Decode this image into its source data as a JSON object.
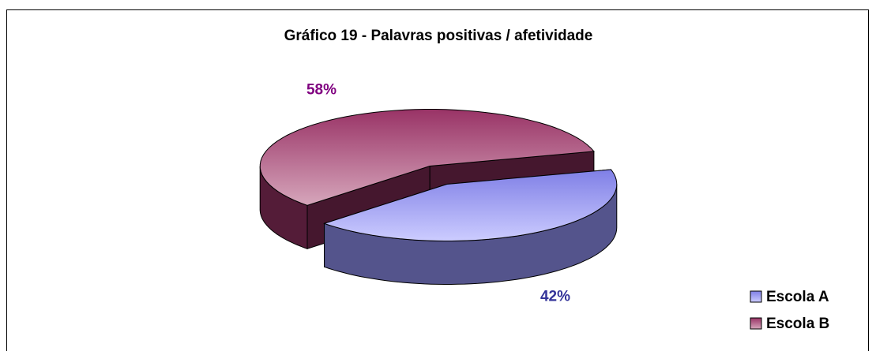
{
  "chart_data": {
    "type": "pie",
    "title": "Gráfico 19 - Palavras positivas / afetividade",
    "categories": [
      "Escola A",
      "Escola B"
    ],
    "values": [
      42,
      58
    ],
    "value_labels": [
      "42%",
      "58%"
    ],
    "colors": [
      "#9999ff",
      "#993366"
    ],
    "label_colors": [
      "#333399",
      "#800080"
    ],
    "legend": "bottom-right"
  }
}
